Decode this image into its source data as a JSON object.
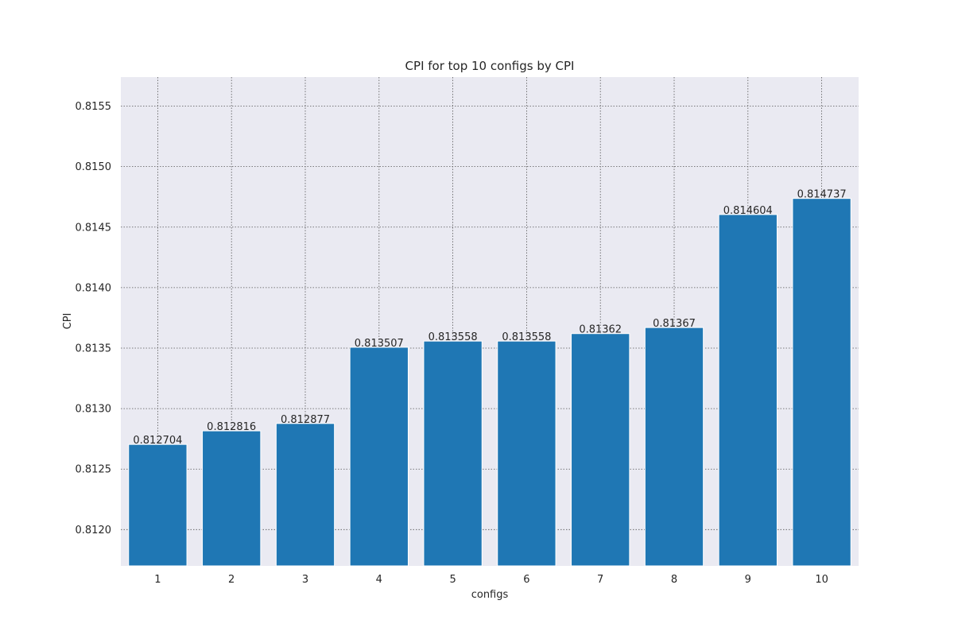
{
  "chart_data": {
    "type": "bar",
    "title": "CPI for top 10 configs by CPI",
    "xlabel": "configs",
    "ylabel": "CPI",
    "categories": [
      "1",
      "2",
      "3",
      "4",
      "5",
      "6",
      "7",
      "8",
      "9",
      "10"
    ],
    "values": [
      0.812704,
      0.812816,
      0.812877,
      0.813507,
      0.813558,
      0.813558,
      0.81362,
      0.81367,
      0.814604,
      0.814737
    ],
    "value_labels": [
      "0.812704",
      "0.812816",
      "0.812877",
      "0.813507",
      "0.813558",
      "0.813558",
      "0.81362",
      "0.81367",
      "0.814604",
      "0.814737"
    ],
    "ylim": [
      0.8117,
      0.81574
    ],
    "yticks": [
      0.812,
      0.8125,
      0.813,
      0.8135,
      0.814,
      0.8145,
      0.815,
      0.8155
    ],
    "ytick_labels": [
      "0.8120",
      "0.8125",
      "0.8130",
      "0.8135",
      "0.8140",
      "0.8145",
      "0.8150",
      "0.8155"
    ],
    "grid": true,
    "bar_color": "#1f77b4",
    "plot_background": "#eaeaf2",
    "grid_color": "#555555"
  }
}
